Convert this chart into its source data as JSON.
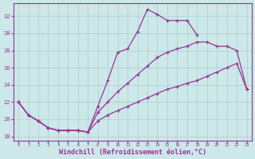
{
  "xlabel": "Windchill (Refroidissement éolien,°C)",
  "background_color": "#cce8e8",
  "grid_color": "#aacccc",
  "line_color": "#993399",
  "hours": [
    0,
    1,
    2,
    3,
    4,
    5,
    6,
    7,
    8,
    9,
    10,
    11,
    12,
    13,
    14,
    15,
    16,
    17,
    18,
    19,
    20,
    21,
    22,
    23
  ],
  "temp": [
    22,
    20.5,
    19.8,
    19.0,
    18.7,
    18.7,
    18.7,
    18.5,
    21.5,
    24.5,
    27.8,
    28.2,
    30.2,
    32.8,
    32.2,
    31.5,
    31.5,
    31.5,
    29.8,
    null,
    null,
    null,
    null,
    null
  ],
  "wc_upper": [
    22,
    20.5,
    19.8,
    19.0,
    18.7,
    18.7,
    18.7,
    18.5,
    20.8,
    22.0,
    23.2,
    24.2,
    25.2,
    26.2,
    27.2,
    27.8,
    28.2,
    28.5,
    29.0,
    29.0,
    28.5,
    28.5,
    28.0,
    23.5
  ],
  "wc_lower": [
    22,
    20.5,
    19.8,
    19.0,
    18.7,
    18.7,
    18.7,
    18.5,
    19.8,
    20.5,
    21.0,
    21.5,
    22.0,
    22.5,
    23.0,
    23.5,
    23.8,
    24.2,
    24.5,
    25.0,
    25.5,
    26.0,
    26.5,
    23.5
  ],
  "xlim": [
    -0.5,
    23.5
  ],
  "ylim": [
    17.5,
    33.5
  ],
  "yticks": [
    18,
    20,
    22,
    24,
    26,
    28,
    30,
    32
  ],
  "xtick_labels": [
    "0",
    "1",
    "2",
    "3",
    "4",
    "5",
    "6",
    "7",
    "8",
    "9",
    "10",
    "11",
    "12",
    "13",
    "14",
    "15",
    "16",
    "17",
    "18",
    "19",
    "20",
    "21",
    "22",
    "23"
  ],
  "xlabel_fontsize": 6,
  "ytick_fontsize": 5,
  "xtick_fontsize": 4
}
